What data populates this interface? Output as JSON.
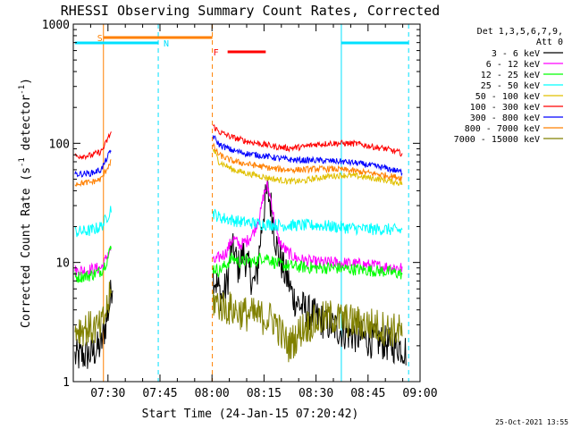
{
  "chart_data": {
    "type": "line",
    "title": "RHESSI Observing Summary Count Rates, Corrected",
    "xlabel": "Start Time (24-Jan-15 07:20:42)",
    "ylabel_main": "Corrected Count Rate (s",
    "ylabel_sup1": "-1",
    "ylabel_mid": " detector",
    "ylabel_sup2": "-1",
    "ylabel_end": ")",
    "yscale": "log",
    "ylim": [
      1,
      1000
    ],
    "xlim_minutes_after_0720": [
      0,
      100
    ],
    "x_ticks": [
      {
        "label": "07:30",
        "m": 10
      },
      {
        "label": "07:45",
        "m": 25
      },
      {
        "label": "08:00",
        "m": 40
      },
      {
        "label": "08:15",
        "m": 55
      },
      {
        "label": "08:30",
        "m": 70
      },
      {
        "label": "08:45",
        "m": 85
      },
      {
        "label": "09:00",
        "m": 100
      }
    ],
    "y_ticks": [
      {
        "label": "1",
        "v": 1
      },
      {
        "label": "10",
        "v": 10
      },
      {
        "label": "100",
        "v": 100
      },
      {
        "label": "1000",
        "v": 1000
      }
    ],
    "legend_header": [
      "Det 1,3,5,6,7,9,",
      "Att 0"
    ],
    "footer_date": "25-Oct-2021 13:55",
    "markers": [
      {
        "label": "S",
        "color": "#ff8000",
        "x0": 8.7,
        "x1": 40.1
      },
      {
        "label": "N",
        "color": "#00e0ff",
        "x0": 0.5,
        "x1": 24.5
      },
      {
        "label": "N",
        "color": "#00e0ff",
        "x0": 77.3,
        "x1": 96.7
      },
      {
        "label": "F",
        "color": "#ff0000",
        "x0": 44.5,
        "x1": 55.5
      }
    ],
    "vlines": [
      {
        "m": 8.7,
        "color": "#ff8000",
        "dashed": false
      },
      {
        "m": 24.5,
        "color": "#00e0ff",
        "dashed": true
      },
      {
        "m": 40.1,
        "color": "#ff8000",
        "dashed": true
      },
      {
        "m": 77.3,
        "color": "#00e0ff",
        "dashed": false
      },
      {
        "m": 96.7,
        "color": "#00e0ff",
        "dashed": true
      }
    ],
    "series": [
      {
        "name": "3 - 6 keV",
        "color": "#000000",
        "points": [
          [
            0.5,
            1.6
          ],
          [
            5,
            1.7
          ],
          [
            8,
            2.0
          ],
          [
            8.7,
            2.5
          ],
          [
            9.5,
            3.2
          ],
          [
            10.5,
            4.5
          ],
          [
            11,
            6
          ],
          [
            11.5,
            7.5
          ],
          [
            40.3,
            8
          ],
          [
            41,
            7
          ],
          [
            43,
            5
          ],
          [
            44.5,
            7
          ],
          [
            45.5,
            13
          ],
          [
            46.5,
            12
          ],
          [
            47.5,
            9
          ],
          [
            49,
            12
          ],
          [
            50,
            10
          ],
          [
            51,
            8
          ],
          [
            52,
            6.5
          ],
          [
            53,
            8
          ],
          [
            54,
            16
          ],
          [
            55,
            28
          ],
          [
            56,
            40
          ],
          [
            57,
            30
          ],
          [
            58,
            18
          ],
          [
            59,
            12
          ],
          [
            60,
            10
          ],
          [
            61,
            8
          ],
          [
            62,
            7
          ],
          [
            63,
            5.5
          ],
          [
            64,
            4.8
          ],
          [
            66,
            4.2
          ],
          [
            68,
            3.8
          ],
          [
            70,
            3.5
          ],
          [
            72,
            3.2
          ],
          [
            74,
            3.0
          ],
          [
            76,
            2.8
          ],
          [
            78,
            2.6
          ],
          [
            80,
            2.5
          ],
          [
            82,
            2.4
          ],
          [
            84,
            2.3
          ],
          [
            86,
            2.2
          ],
          [
            88,
            2.2
          ],
          [
            90,
            2.1
          ],
          [
            92,
            2.0
          ],
          [
            94,
            2.0
          ],
          [
            96,
            1.8
          ]
        ]
      },
      {
        "name": "6 - 12 keV",
        "color": "#ff00ff",
        "points": [
          [
            0.5,
            8.5
          ],
          [
            5,
            8.7
          ],
          [
            8,
            9.0
          ],
          [
            9,
            10
          ],
          [
            10,
            12
          ],
          [
            11,
            13
          ],
          [
            40.3,
            10
          ],
          [
            42,
            11
          ],
          [
            44,
            12
          ],
          [
            46,
            16
          ],
          [
            48,
            14
          ],
          [
            50,
            15
          ],
          [
            52,
            18
          ],
          [
            54,
            26
          ],
          [
            55,
            38
          ],
          [
            56,
            44
          ],
          [
            57,
            34
          ],
          [
            58,
            22
          ],
          [
            59,
            16
          ],
          [
            60,
            14
          ],
          [
            62,
            12
          ],
          [
            64,
            11
          ],
          [
            66,
            10.5
          ],
          [
            70,
            10
          ],
          [
            75,
            10
          ],
          [
            80,
            9.8
          ],
          [
            85,
            9.5
          ],
          [
            90,
            9.2
          ],
          [
            95,
            9.0
          ]
        ]
      },
      {
        "name": "12 - 25 keV",
        "color": "#00ff00",
        "points": [
          [
            0.5,
            7.5
          ],
          [
            5,
            7.8
          ],
          [
            8,
            8.5
          ],
          [
            9,
            9.5
          ],
          [
            10,
            11
          ],
          [
            11,
            14
          ],
          [
            40.3,
            9
          ],
          [
            42,
            8.5
          ],
          [
            44,
            9.5
          ],
          [
            46,
            11
          ],
          [
            48,
            10
          ],
          [
            50,
            10.5
          ],
          [
            52,
            10
          ],
          [
            54,
            11
          ],
          [
            56,
            11
          ],
          [
            58,
            10
          ],
          [
            60,
            9.5
          ],
          [
            65,
            9.2
          ],
          [
            70,
            9
          ],
          [
            75,
            9
          ],
          [
            80,
            8.8
          ],
          [
            85,
            8.6
          ],
          [
            90,
            8.4
          ],
          [
            95,
            8.0
          ]
        ]
      },
      {
        "name": "25 - 50 keV",
        "color": "#00ffff",
        "points": [
          [
            0.5,
            18
          ],
          [
            5,
            18.5
          ],
          [
            8,
            20
          ],
          [
            9,
            22
          ],
          [
            10,
            25
          ],
          [
            11,
            29
          ],
          [
            40.3,
            26
          ],
          [
            42,
            24
          ],
          [
            45,
            23
          ],
          [
            48,
            22
          ],
          [
            51,
            21.5
          ],
          [
            55,
            21
          ],
          [
            60,
            20.5
          ],
          [
            65,
            20.5
          ],
          [
            70,
            20.5
          ],
          [
            75,
            20
          ],
          [
            80,
            19.5
          ],
          [
            85,
            19
          ],
          [
            90,
            19
          ],
          [
            95,
            18.5
          ]
        ]
      },
      {
        "name": "50 - 100 keV",
        "color": "#e0c000",
        "points": [
          [
            40.3,
            90
          ],
          [
            42,
            70
          ],
          [
            44,
            65
          ],
          [
            46,
            60
          ],
          [
            50,
            56
          ],
          [
            54,
            53
          ],
          [
            58,
            50
          ],
          [
            62,
            48
          ],
          [
            66,
            48
          ],
          [
            70,
            51
          ],
          [
            74,
            53
          ],
          [
            78,
            54
          ],
          [
            82,
            53
          ],
          [
            86,
            51
          ],
          [
            90,
            49
          ],
          [
            95,
            46
          ]
        ]
      },
      {
        "name": "100 - 300 keV",
        "color": "#ff0000",
        "points": [
          [
            0.5,
            78
          ],
          [
            5,
            79
          ],
          [
            8,
            85
          ],
          [
            9,
            95
          ],
          [
            10,
            110
          ],
          [
            11,
            125
          ],
          [
            40.3,
            140
          ],
          [
            42,
            125
          ],
          [
            44,
            118
          ],
          [
            46,
            112
          ],
          [
            50,
            104
          ],
          [
            54,
            99
          ],
          [
            58,
            94
          ],
          [
            62,
            91
          ],
          [
            66,
            93
          ],
          [
            70,
            98
          ],
          [
            74,
            100
          ],
          [
            78,
            100
          ],
          [
            82,
            99
          ],
          [
            86,
            94
          ],
          [
            90,
            90
          ],
          [
            95,
            82
          ]
        ]
      },
      {
        "name": "300 - 800 keV",
        "color": "#0000ff",
        "points": [
          [
            0.5,
            55
          ],
          [
            5,
            56
          ],
          [
            8,
            60
          ],
          [
            9,
            68
          ],
          [
            10,
            78
          ],
          [
            11,
            88
          ],
          [
            40.3,
            115
          ],
          [
            42,
            98
          ],
          [
            44,
            92
          ],
          [
            46,
            87
          ],
          [
            50,
            82
          ],
          [
            54,
            79
          ],
          [
            58,
            76
          ],
          [
            62,
            73
          ],
          [
            66,
            72
          ],
          [
            70,
            72
          ],
          [
            74,
            71
          ],
          [
            78,
            70
          ],
          [
            82,
            68
          ],
          [
            86,
            65
          ],
          [
            90,
            62
          ],
          [
            95,
            57
          ]
        ]
      },
      {
        "name": "800 - 7000 keV",
        "color": "#ff8000",
        "points": [
          [
            0.5,
            46
          ],
          [
            5,
            47
          ],
          [
            8,
            50
          ],
          [
            9,
            56
          ],
          [
            10,
            64
          ],
          [
            11,
            72
          ],
          [
            40.3,
            95
          ],
          [
            42,
            80
          ],
          [
            44,
            75
          ],
          [
            46,
            71
          ],
          [
            50,
            67
          ],
          [
            54,
            64
          ],
          [
            58,
            61
          ],
          [
            62,
            60
          ],
          [
            66,
            60
          ],
          [
            70,
            61
          ],
          [
            74,
            61
          ],
          [
            78,
            60
          ],
          [
            82,
            58
          ],
          [
            86,
            56
          ],
          [
            90,
            54
          ],
          [
            95,
            51
          ]
        ]
      },
      {
        "name": "7000 - 15000 keV",
        "color": "#808000",
        "points": [
          [
            0.5,
            2.8
          ],
          [
            5,
            2.8
          ],
          [
            8,
            2.8
          ],
          [
            9,
            3.5
          ],
          [
            10,
            4.5
          ],
          [
            11,
            5.5
          ],
          [
            40.3,
            4.8
          ],
          [
            43,
            4.3
          ],
          [
            46,
            4.0
          ],
          [
            50,
            3.7
          ],
          [
            54,
            3.5
          ],
          [
            58,
            3.3
          ],
          [
            60,
            2.5
          ],
          [
            62,
            2.0
          ],
          [
            64,
            2.3
          ],
          [
            66,
            2.8
          ],
          [
            70,
            3.2
          ],
          [
            74,
            3.5
          ],
          [
            78,
            3.3
          ],
          [
            82,
            3.1
          ],
          [
            86,
            3.0
          ],
          [
            90,
            2.8
          ],
          [
            95,
            2.6
          ]
        ]
      }
    ]
  }
}
